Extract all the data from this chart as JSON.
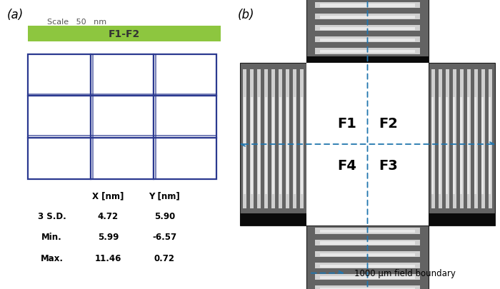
{
  "panel_a_label": "(a)",
  "panel_b_label": "(b)",
  "scale_text": "Scale   50   nm",
  "bar_label": "F1-F2",
  "bar_color": "#8dc63f",
  "grid_color": "#2b3990",
  "table_headers": [
    "",
    "X [nm]",
    "Y [nm]"
  ],
  "table_rows": [
    [
      "3 S.D.",
      "4.72",
      "5.90"
    ],
    [
      "Min.",
      "5.99",
      "-6.57"
    ],
    [
      "Max.",
      "11.46",
      "0.72"
    ]
  ],
  "arrow_color": "#2176ae",
  "boundary_label": "1000 μm field boundary",
  "sem_dark": "#5c5c5c",
  "sem_darker": "#3a3a3a",
  "sem_bar": "#111111",
  "sem_stripe": "#b8b8b8",
  "sem_stripe_dark": "#888888"
}
